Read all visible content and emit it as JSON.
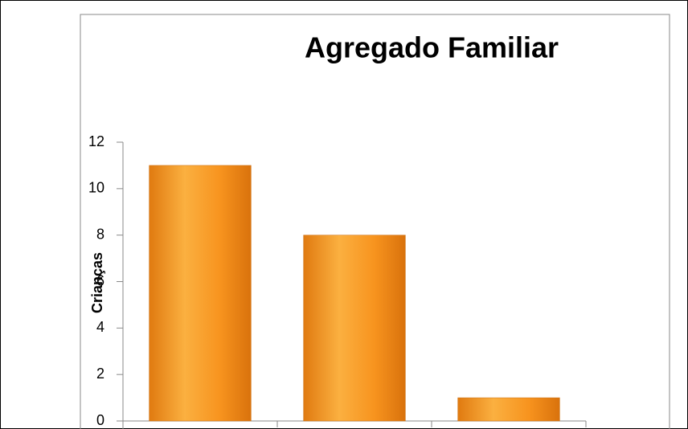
{
  "chart_data": {
    "type": "bar",
    "title": "Agregado Familiar",
    "y_label": "Crianças",
    "categories": [
      null,
      null,
      null
    ],
    "values": [
      11,
      8,
      1
    ],
    "color": "#f7931e",
    "ylim": [
      0,
      12
    ],
    "yticks": [
      0,
      2,
      4,
      6,
      8,
      10,
      12
    ]
  }
}
